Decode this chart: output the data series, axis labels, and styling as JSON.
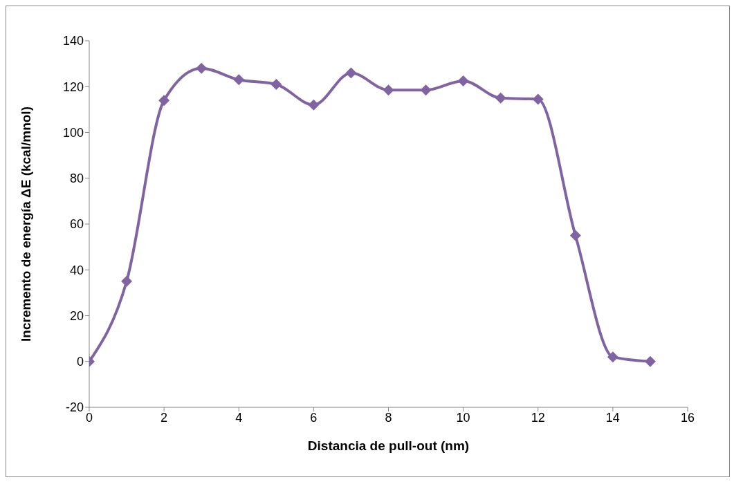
{
  "chart_data": {
    "type": "line",
    "xlabel": "Distancia de pull-out (nm)",
    "ylabel": "Incremento de energía ΔE (kcal/mnol)",
    "x": [
      0,
      1,
      2,
      3,
      4,
      5,
      6,
      7,
      8,
      9,
      10,
      11,
      12,
      13,
      14,
      15
    ],
    "series": [
      {
        "color": "#8064a2",
        "values": [
          0,
          35,
          114,
          128,
          123,
          121,
          112,
          126,
          118.5,
          118.5,
          122.5,
          115,
          114.5,
          55,
          2,
          0
        ]
      }
    ],
    "xlim": [
      0,
      16
    ],
    "xticks": [
      0,
      2,
      4,
      6,
      8,
      10,
      12,
      14,
      16
    ],
    "ylim": [
      -20,
      140
    ],
    "yticks": [
      -20,
      0,
      20,
      40,
      60,
      80,
      100,
      120,
      140
    ],
    "marker": "diamond",
    "line_style": "solid"
  }
}
